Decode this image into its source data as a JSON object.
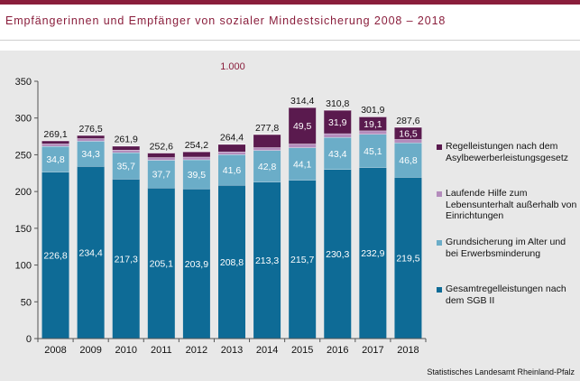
{
  "page": {
    "title": "Empfängerinnen und Empfänger von sozialer Mindestsicherung 2008 – 2018",
    "unit_label": "1.000",
    "source": "Statistisches Landesamt Rheinland-Pfalz"
  },
  "colors": {
    "accent": "#8a1e3c",
    "panel": "#e8e8e8",
    "gesamt": "#0e6b96",
    "grundsicherung": "#6badc8",
    "laufende": "#b48cbc",
    "regel": "#5a1a4e"
  },
  "chart_data": {
    "type": "bar",
    "stacked": true,
    "categories": [
      "2008",
      "2009",
      "2010",
      "2011",
      "2012",
      "2013",
      "2014",
      "2015",
      "2016",
      "2017",
      "2018"
    ],
    "ylim": [
      0,
      350
    ],
    "yticks": [
      0,
      50,
      100,
      150,
      200,
      250,
      300,
      350
    ],
    "grid": false,
    "legend_position": "right",
    "series": [
      {
        "name": "Gesamtregelleistungen nach dem SGB II",
        "color": "#0e6b96",
        "values": [
          226.8,
          234.4,
          217.3,
          205.1,
          203.9,
          208.8,
          213.3,
          215.7,
          230.3,
          232.9,
          219.5
        ],
        "labels": [
          "226,8",
          "234,4",
          "217,3",
          "205,1",
          "203,9",
          "208,8",
          "213,3",
          "215,7",
          "230,3",
          "232,9",
          "219,5"
        ]
      },
      {
        "name": "Grundsicherung im Alter und bei Erwerbsminderung",
        "color": "#6badc8",
        "values": [
          34.8,
          34.3,
          35.7,
          37.7,
          39.5,
          41.6,
          42.8,
          44.1,
          43.4,
          45.1,
          46.8
        ],
        "labels": [
          "34,8",
          "34,3",
          "35,7",
          "37,7",
          "39,5",
          "41,6",
          "42,8",
          "44,1",
          "43,4",
          "45,1",
          "46,8"
        ]
      },
      {
        "name": "Laufende Hilfe zum Lebensunterhalt außerhalb von Einrichtungen",
        "color": "#b48cbc",
        "values": [
          3.5,
          3.5,
          3.6,
          3.6,
          3.7,
          3.8,
          3.9,
          5.1,
          5.2,
          4.8,
          4.8
        ],
        "labels": []
      },
      {
        "name": "Regelleistungen nach dem Asylbewerberleistungsgesetz",
        "color": "#5a1a4e",
        "values": [
          4.0,
          4.3,
          5.3,
          6.2,
          7.1,
          10.2,
          17.8,
          49.5,
          31.9,
          19.1,
          16.5
        ],
        "labels": [
          "",
          "",
          "",
          "",
          "",
          "",
          "",
          "49,5",
          "31,9",
          "19,1",
          "16,5"
        ]
      }
    ],
    "totals": [
      "269,1",
      "276,5",
      "261,9",
      "252,6",
      "254,2",
      "264,4",
      "277,8",
      "314,4",
      "310,8",
      "301,9",
      "287,6"
    ]
  },
  "legend": [
    {
      "label": "Regelleistungen nach dem Asylbewerberleistungsgesetz",
      "color": "#5a1a4e"
    },
    {
      "label": "Laufende Hilfe zum Lebensunterhalt außerhalb von Einrichtungen",
      "color": "#b48cbc"
    },
    {
      "label": "Grundsicherung im Alter und bei Erwerbsminderung",
      "color": "#6badc8"
    },
    {
      "label": "Gesamtregelleistungen nach dem SGB II",
      "color": "#0e6b96"
    }
  ]
}
